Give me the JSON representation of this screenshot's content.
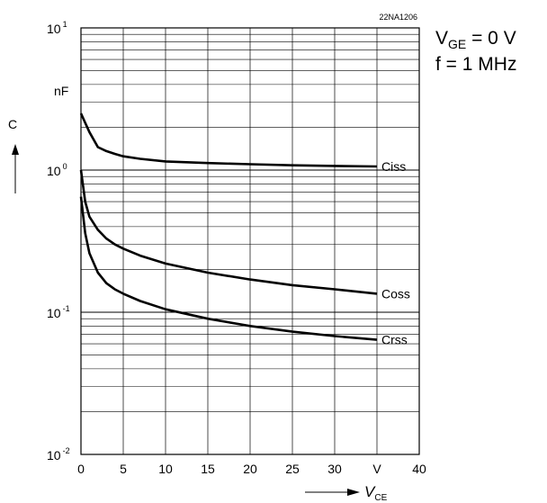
{
  "chart_data": {
    "type": "line",
    "code": "22NA1206",
    "conditions": {
      "line1": {
        "var": "V",
        "sub": "GE",
        "rest": " = 0 V"
      },
      "line2": "f = 1 MHz"
    },
    "y_axis": {
      "symbol": "C",
      "unit": "nF",
      "scale": "log",
      "ylim": [
        0.01,
        10
      ],
      "ticks": [
        {
          "base": "10",
          "exp": "1",
          "value": 10
        },
        {
          "base": "10",
          "exp": "0",
          "value": 1
        },
        {
          "base": "10",
          "exp": "-1",
          "value": 0.1
        },
        {
          "base": "10",
          "exp": "-2",
          "value": 0.01
        }
      ]
    },
    "x_axis": {
      "symbol": "V",
      "sub": "CE",
      "unit": "V",
      "xlim": [
        0,
        40
      ],
      "ticks": [
        "0",
        "5",
        "10",
        "15",
        "20",
        "25",
        "30",
        "40"
      ],
      "tick_values": [
        0,
        5,
        10,
        15,
        20,
        25,
        30,
        40
      ]
    },
    "grid": true,
    "series": [
      {
        "name": "Ciss",
        "x": [
          0,
          1,
          2,
          3,
          4,
          5,
          7,
          10,
          15,
          20,
          25,
          30,
          35
        ],
        "y": [
          2.5,
          1.85,
          1.45,
          1.36,
          1.3,
          1.25,
          1.2,
          1.15,
          1.12,
          1.1,
          1.08,
          1.07,
          1.06
        ]
      },
      {
        "name": "Coss",
        "x": [
          0,
          0.5,
          1,
          2,
          3,
          4,
          5,
          7,
          10,
          15,
          20,
          25,
          30,
          35
        ],
        "y": [
          1.0,
          0.6,
          0.47,
          0.38,
          0.33,
          0.3,
          0.28,
          0.25,
          0.22,
          0.19,
          0.17,
          0.155,
          0.145,
          0.135
        ]
      },
      {
        "name": "Crss",
        "x": [
          0,
          0.5,
          1,
          2,
          3,
          4,
          5,
          7,
          10,
          15,
          20,
          25,
          30,
          35
        ],
        "y": [
          0.65,
          0.36,
          0.26,
          0.19,
          0.16,
          0.145,
          0.135,
          0.12,
          0.105,
          0.09,
          0.08,
          0.073,
          0.068,
          0.064
        ]
      }
    ]
  }
}
